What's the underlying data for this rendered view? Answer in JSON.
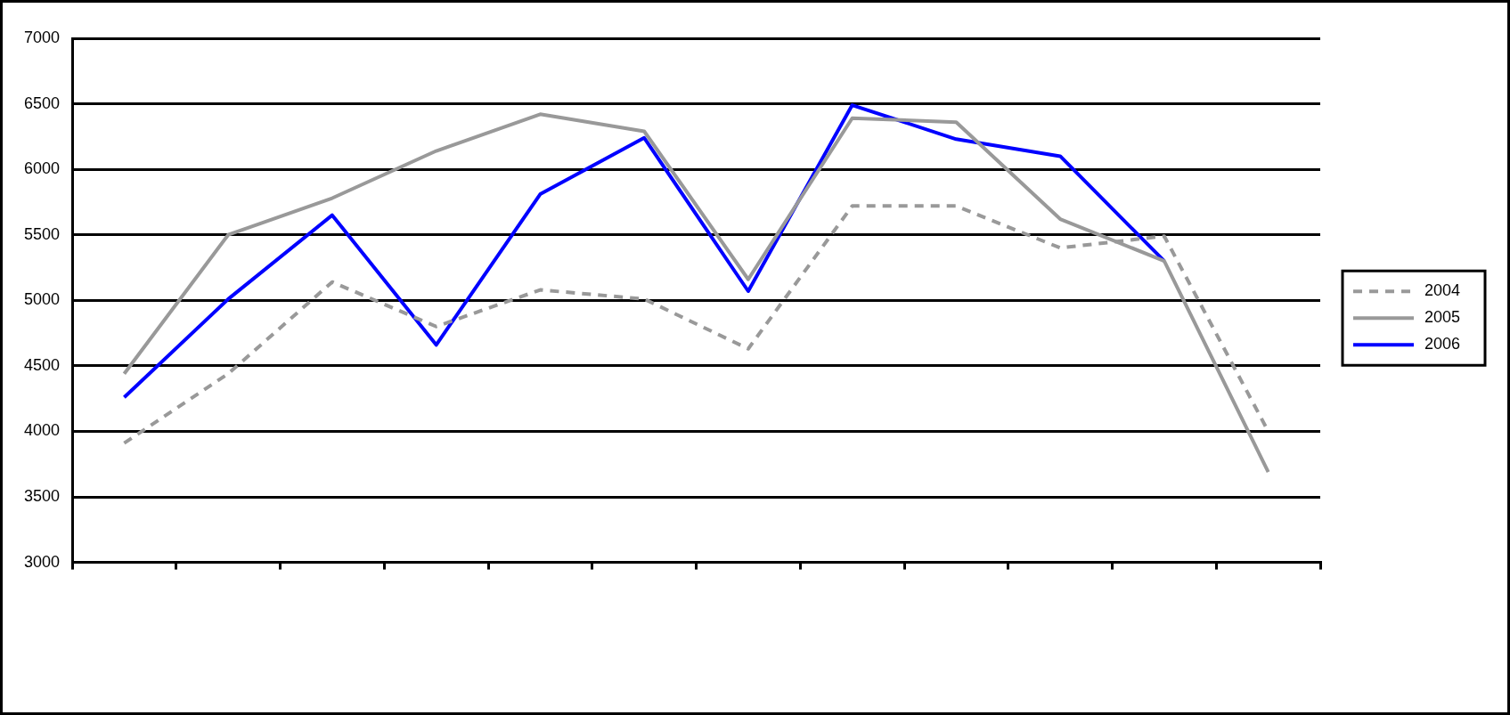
{
  "chart_data": {
    "type": "line",
    "categories": [
      null,
      null,
      null,
      null,
      null,
      null,
      null,
      null,
      null,
      null,
      null,
      null
    ],
    "series": [
      {
        "name": "2004",
        "color": "#999999",
        "line_style": "dashed",
        "values": [
          3910,
          4440,
          5140,
          4800,
          5080,
          5010,
          4630,
          5720,
          5720,
          5400,
          5490,
          4000
        ]
      },
      {
        "name": "2005",
        "color": "#999999",
        "line_style": "solid",
        "values": [
          4440,
          5500,
          5780,
          6140,
          6420,
          6290,
          5160,
          6390,
          6360,
          5620,
          5300,
          3690
        ]
      },
      {
        "name": "2006",
        "color": "#0000ff",
        "line_style": "solid",
        "values": [
          4260,
          5010,
          5650,
          4660,
          5810,
          6240,
          5070,
          6490,
          6230,
          6100,
          5300,
          null
        ]
      }
    ],
    "ylim": [
      3000,
      7000
    ],
    "yticks": [
      3000,
      3500,
      4000,
      4500,
      5000,
      5500,
      6000,
      6500,
      7000
    ],
    "grid": "y",
    "legend": "right",
    "marker": "none"
  }
}
